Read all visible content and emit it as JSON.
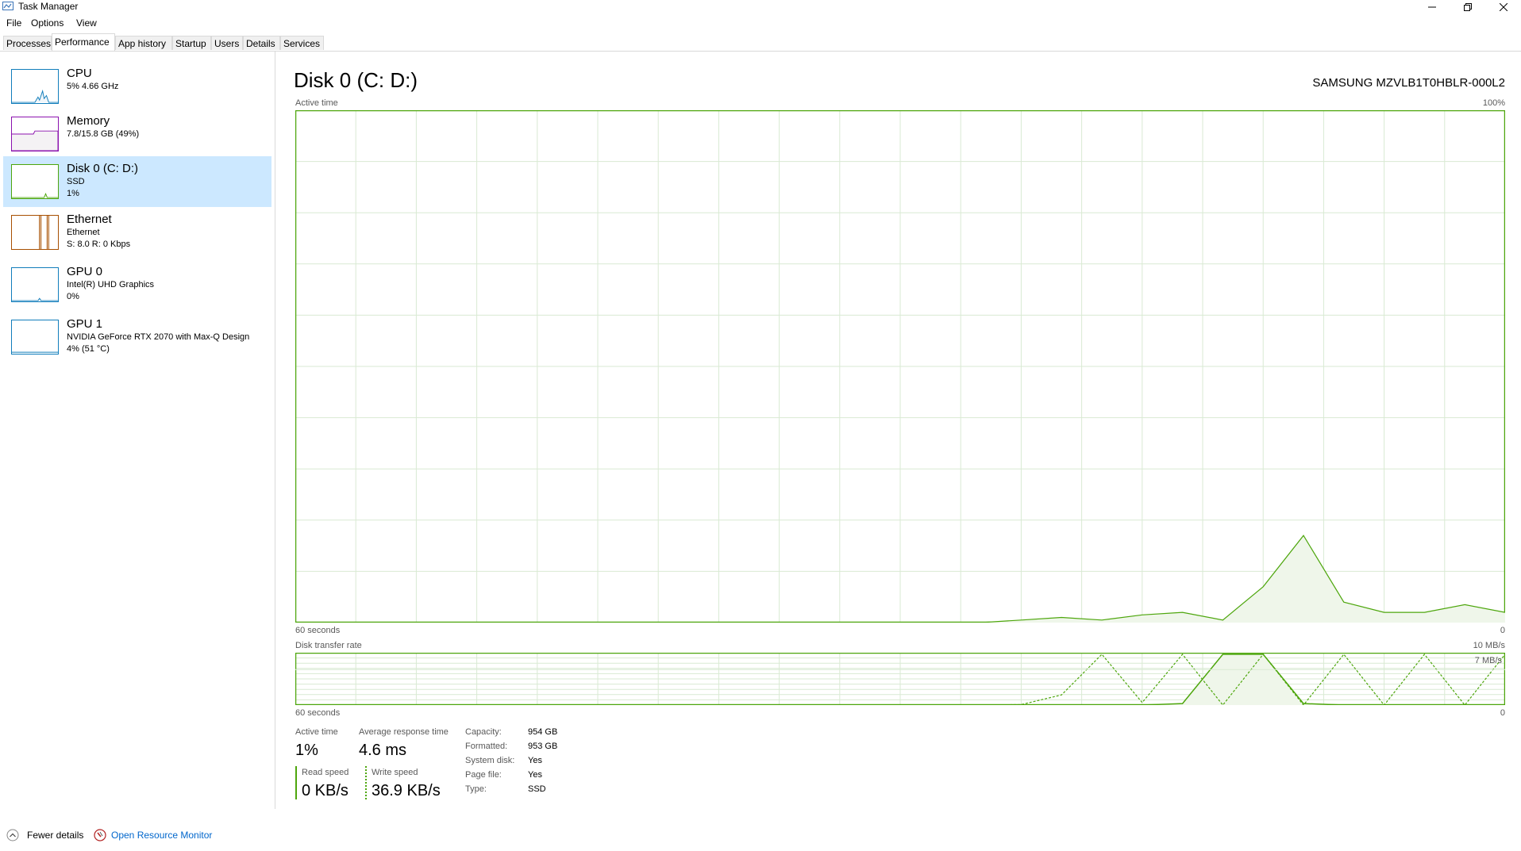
{
  "window": {
    "title": "Task Manager"
  },
  "menu": [
    "File",
    "Options",
    "View"
  ],
  "tabs": [
    "Processes",
    "Performance",
    "App history",
    "Startup",
    "Users",
    "Details",
    "Services"
  ],
  "active_tab": "Performance",
  "sidebar": [
    {
      "title": "CPU",
      "line1": "5% 4.66 GHz",
      "line2": "",
      "color": "#117dbb"
    },
    {
      "title": "Memory",
      "line1": "7.8/15.8 GB (49%)",
      "line2": "",
      "color": "#8b12ae"
    },
    {
      "title": "Disk 0 (C: D:)",
      "line1": "SSD",
      "line2": "1%",
      "color": "#4da60c"
    },
    {
      "title": "Ethernet",
      "line1": "Ethernet",
      "line2": "S: 8.0  R: 0 Kbps",
      "color": "#a74f01"
    },
    {
      "title": "GPU 0",
      "line1": "Intel(R) UHD Graphics",
      "line2": "0%",
      "color": "#117dbb"
    },
    {
      "title": "GPU 1",
      "line1": "NVIDIA GeForce RTX 2070 with Max-Q Design",
      "line2": "4%  (51 °C)",
      "color": "#117dbb"
    }
  ],
  "main": {
    "title": "Disk 0 (C: D:)",
    "model": "SAMSUNG MZVLB1T0HBLR-000L2",
    "active_time_label": "Active time",
    "active_time_max": "100%",
    "time_left": "60 seconds",
    "time_right": "0",
    "transfer_label": "Disk transfer rate",
    "transfer_max": "10 MB/s",
    "transfer_mark": "7 MB/s",
    "accent": "#4da60c"
  },
  "stats": {
    "active_time_label": "Active time",
    "active_time": "1%",
    "avg_response_label": "Average response time",
    "avg_response": "4.6 ms",
    "read_label": "Read speed",
    "read": "0 KB/s",
    "write_label": "Write speed",
    "write": "36.9 KB/s"
  },
  "properties": [
    {
      "label": "Capacity:",
      "value": "954 GB"
    },
    {
      "label": "Formatted:",
      "value": "953 GB"
    },
    {
      "label": "System disk:",
      "value": "Yes"
    },
    {
      "label": "Page file:",
      "value": "Yes"
    },
    {
      "label": "Type:",
      "value": "SSD"
    }
  ],
  "footer": {
    "fewer": "Fewer details",
    "resmon": "Open Resource Monitor"
  },
  "chart_data": [
    {
      "type": "area",
      "ylabel": "Active time",
      "ylim": [
        0,
        100
      ],
      "x": [
        60,
        58,
        56,
        54,
        52,
        50,
        48,
        46,
        44,
        42,
        40,
        38,
        36,
        34,
        32,
        30,
        28,
        26,
        24,
        22,
        20,
        18,
        16,
        14,
        12,
        10,
        8,
        6,
        4,
        2,
        0
      ],
      "values": [
        0,
        0,
        0,
        0,
        0,
        0,
        0,
        0,
        0,
        0,
        0,
        0,
        0,
        0,
        0,
        0,
        0,
        0,
        0.5,
        1,
        0.5,
        1.5,
        2,
        0.5,
        7,
        17,
        4,
        2,
        2,
        3.5,
        2
      ]
    },
    {
      "type": "line",
      "ylabel": "Disk transfer rate",
      "ylim": [
        0,
        10
      ],
      "series": [
        {
          "name": "Read speed",
          "values": [
            0,
            0,
            0,
            0,
            0,
            0,
            0,
            0,
            0,
            0,
            0,
            0,
            0,
            0,
            0,
            0,
            0,
            0,
            0,
            0,
            0,
            0,
            0.3,
            10,
            10,
            0.3,
            0,
            0,
            0,
            0,
            0
          ]
        },
        {
          "name": "Write speed",
          "values": [
            0,
            0,
            0,
            0,
            0,
            0,
            0,
            0,
            0,
            0,
            0,
            0,
            0,
            0,
            0,
            0,
            0,
            0,
            0.1,
            2,
            10,
            0.5,
            10,
            0,
            10,
            0,
            10,
            0,
            10,
            0,
            10
          ]
        }
      ]
    }
  ]
}
